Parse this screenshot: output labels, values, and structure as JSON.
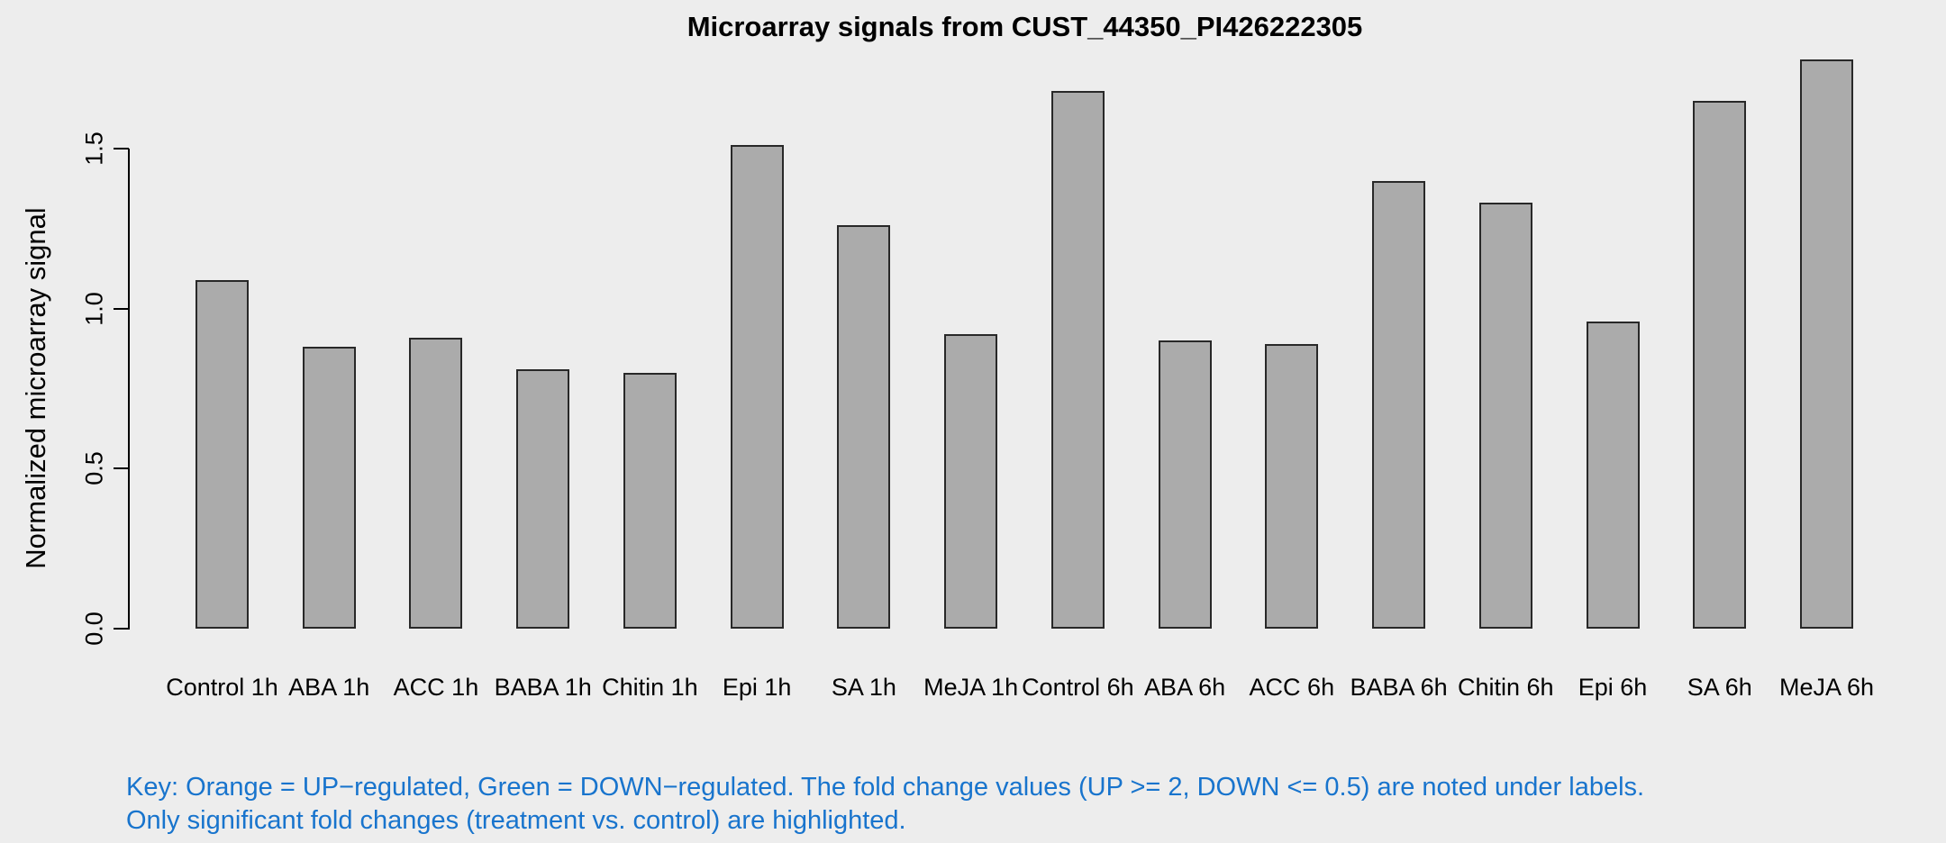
{
  "chart_data": {
    "type": "bar",
    "title": "Microarray signals from CUST_44350_PI426222305",
    "ylabel": "Normalized microarray signal",
    "xlabel": "",
    "categories": [
      "Control 1h",
      "ABA 1h",
      "ACC 1h",
      "BABA 1h",
      "Chitin 1h",
      "Epi 1h",
      "SA 1h",
      "MeJA 1h",
      "Control 6h",
      "ABA 6h",
      "ACC 6h",
      "BABA 6h",
      "Chitin 6h",
      "Epi 6h",
      "SA 6h",
      "MeJA 6h"
    ],
    "values": [
      1.09,
      0.88,
      0.91,
      0.81,
      0.8,
      1.51,
      1.26,
      0.92,
      1.68,
      0.9,
      0.89,
      1.4,
      1.33,
      0.96,
      1.65,
      1.78
    ],
    "ytick_labels": [
      "0.0",
      "0.5",
      "1.0",
      "1.5"
    ],
    "ytick_values": [
      0.0,
      0.5,
      1.0,
      1.5
    ],
    "ylim": [
      0,
      1.8
    ],
    "grid": "off",
    "legend": "none",
    "bar_fill_color": "#ABABAB",
    "bar_border_color": "#282828",
    "background_color": "#EDEDED",
    "note_color": "#1874CD",
    "note_lines": [
      "Key: Orange = UP−regulated, Green = DOWN−regulated. The fold change values (UP >= 2, DOWN <= 0.5) are noted under labels.",
      "Only significant fold changes (treatment vs. control) are highlighted."
    ]
  }
}
